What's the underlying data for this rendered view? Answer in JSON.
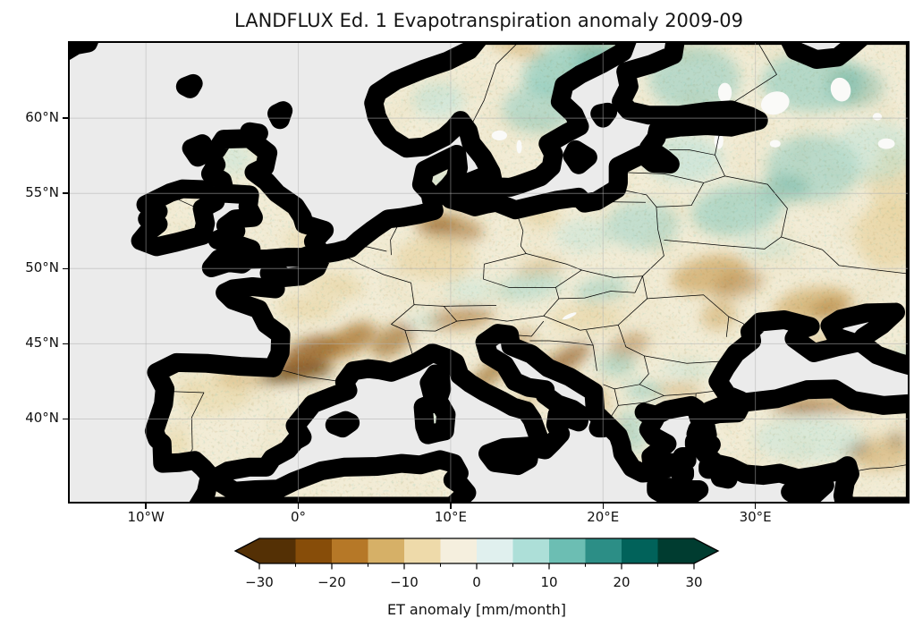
{
  "title": "LANDFLUX Ed. 1 Evapotranspiration anomaly 2009-09",
  "axes": {
    "x_tick_labels": [
      "10°W",
      "0°",
      "10°E",
      "20°E",
      "30°E"
    ],
    "x_tick_lons": [
      -10,
      0,
      10,
      20,
      30
    ],
    "y_tick_labels": [
      "60°N",
      "55°N",
      "50°N",
      "45°N",
      "40°N"
    ],
    "y_tick_lats": [
      60,
      55,
      50,
      45,
      40
    ],
    "lon_range": [
      -15,
      40
    ],
    "lat_range": [
      34.5,
      65
    ]
  },
  "colorbar": {
    "label": "ET anomaly [mm/month]",
    "ticks": [
      -30,
      -20,
      -10,
      0,
      10,
      20,
      30
    ],
    "tick_labels": [
      "−30",
      "−20",
      "−10",
      "0",
      "10",
      "20",
      "30"
    ],
    "range": [
      -30,
      30
    ],
    "bin_width": 5,
    "extend": "both",
    "colors": [
      "#543005",
      "#874d09",
      "#b67827",
      "#d6b067",
      "#eedaaa",
      "#f5efde",
      "#e0f0ee",
      "#addfd8",
      "#6cbeb3",
      "#2c8e86",
      "#01625a",
      "#003c30"
    ]
  },
  "colors": {
    "ocean": "#ebebeb",
    "land_base": "#f2ecd6",
    "coastline": "#000000",
    "grid": "#b3b3b3",
    "figure_bg": "#ffffff",
    "text": "#111111"
  },
  "chart_data": {
    "type": "heatmap",
    "title": "LANDFLUX Ed. 1 Evapotranspiration anomaly 2009-09",
    "variable": "ET anomaly",
    "units": "mm/month",
    "period": "2009-09",
    "dataset": "LANDFLUX Ed. 1",
    "projection": "equirectangular (lat/lon)",
    "extent": {
      "lon": [
        -15,
        40
      ],
      "lat": [
        34.5,
        65
      ]
    },
    "colormap": "BrBG, 12 discrete levels from -30 to 30, arrows both ends",
    "grid": "dashed graticule every 10 deg lon / 5 deg lat",
    "legend_position": "bottom horizontal colorbar",
    "ocean_is_no_data": true,
    "regions": [
      {
        "name": "pyrenees",
        "lon": -0.2,
        "lat": 43.05,
        "rx": 2.6,
        "ry": 0.5,
        "rot": -8,
        "color": "#543005",
        "opacity": 0.8,
        "value": -30
      },
      {
        "name": "aquitaine-sw-france",
        "lon": 0.7,
        "lat": 44.3,
        "rx": 2.1,
        "ry": 1.0,
        "rot": -25,
        "color": "#8c510a",
        "opacity": 0.75,
        "value": -25
      },
      {
        "name": "massif-central",
        "lon": 3.4,
        "lat": 45.2,
        "rx": 1.9,
        "ry": 0.9,
        "rot": -30,
        "color": "#a36a1f",
        "opacity": 0.7,
        "value": -20
      },
      {
        "name": "french-alps",
        "lon": 6.2,
        "lat": 45.2,
        "rx": 1.6,
        "ry": 0.9,
        "rot": -35,
        "color": "#8c510a",
        "opacity": 0.55,
        "value": -22
      },
      {
        "name": "loire",
        "lon": 0.6,
        "lat": 47.4,
        "rx": 2.0,
        "ry": 0.9,
        "rot": 0,
        "color": "#e8d39e",
        "opacity": 0.6,
        "value": -8
      },
      {
        "name": "paris-basin",
        "lon": 2.5,
        "lat": 48.9,
        "rx": 1.9,
        "ry": 0.8,
        "rot": 10,
        "color": "#e8d39e",
        "opacity": 0.6,
        "value": -8
      },
      {
        "name": "nw-iberia",
        "lon": -5.6,
        "lat": 41.6,
        "rx": 2.4,
        "ry": 1.3,
        "rot": 0,
        "color": "#e8d39e",
        "opacity": 0.5,
        "value": -7
      },
      {
        "name": "cantabria",
        "lon": -3.9,
        "lat": 42.7,
        "rx": 1.7,
        "ry": 0.5,
        "rot": 5,
        "color": "#cda257",
        "opacity": 0.5,
        "value": -13
      },
      {
        "name": "s-portugal",
        "lon": -7.9,
        "lat": 38.3,
        "rx": 0.9,
        "ry": 1.1,
        "rot": 0,
        "color": "#e8d39e",
        "opacity": 0.5,
        "value": -7
      },
      {
        "name": "eastern-alps",
        "lon": 10.6,
        "lat": 46.7,
        "rx": 2.3,
        "ry": 0.7,
        "rot": -6,
        "color": "#a36a1f",
        "opacity": 0.55,
        "value": -18
      },
      {
        "name": "nw-germany",
        "lon": 9.9,
        "lat": 52.7,
        "rx": 2.3,
        "ry": 0.9,
        "rot": 8,
        "color": "#a36a1f",
        "opacity": 0.55,
        "value": -17
      },
      {
        "name": "germany-core",
        "lon": 9.3,
        "lat": 52.9,
        "rx": 1.1,
        "ry": 0.5,
        "rot": 0,
        "color": "#8c510a",
        "opacity": 0.45,
        "value": -22
      },
      {
        "name": "central-germany",
        "lon": 9.0,
        "lat": 50.7,
        "rx": 2.6,
        "ry": 1.5,
        "rot": 0,
        "color": "#e8d39e",
        "opacity": 0.65,
        "value": -8
      },
      {
        "name": "n-czech",
        "lon": 15.8,
        "lat": 50.0,
        "rx": 1.6,
        "ry": 0.5,
        "rot": -10,
        "color": "#cda257",
        "opacity": 0.5,
        "value": -12
      },
      {
        "name": "apennines",
        "lon": 12.7,
        "lat": 43.1,
        "rx": 1.9,
        "ry": 0.6,
        "rot": -38,
        "color": "#8c510a",
        "opacity": 0.6,
        "value": -20
      },
      {
        "name": "s-apennines",
        "lon": 14.9,
        "lat": 41.1,
        "rx": 1.2,
        "ry": 0.5,
        "rot": -35,
        "color": "#cda257",
        "opacity": 0.45,
        "value": -10
      },
      {
        "name": "istria",
        "lon": 14.6,
        "lat": 45.3,
        "rx": 1.0,
        "ry": 0.5,
        "rot": -20,
        "color": "#a36a1f",
        "opacity": 0.5,
        "value": -15
      },
      {
        "name": "dinaric-alps",
        "lon": 17.4,
        "lat": 43.8,
        "rx": 2.1,
        "ry": 0.7,
        "rot": -33,
        "color": "#8c510a",
        "opacity": 0.65,
        "value": -22
      },
      {
        "name": "albania-coast",
        "lon": 19.6,
        "lat": 41.3,
        "rx": 0.7,
        "ry": 1.2,
        "rot": -10,
        "color": "#cda257",
        "opacity": 0.5,
        "value": -12
      },
      {
        "name": "pannonia",
        "lon": 18.9,
        "lat": 46.7,
        "rx": 2.4,
        "ry": 1.0,
        "rot": 0,
        "color": "#e8d39e",
        "opacity": 0.55,
        "value": -7
      },
      {
        "name": "banat-serbia",
        "lon": 21.7,
        "lat": 44.9,
        "rx": 1.4,
        "ry": 0.8,
        "rot": -20,
        "color": "#a36a1f",
        "opacity": 0.45,
        "value": -14
      },
      {
        "name": "rhodope",
        "lon": 24.8,
        "lat": 41.9,
        "rx": 1.6,
        "ry": 0.5,
        "rot": 0,
        "color": "#cda257",
        "opacity": 0.45,
        "value": -11
      },
      {
        "name": "w-ukraine",
        "lon": 27.0,
        "lat": 49.6,
        "rx": 2.6,
        "ry": 1.2,
        "rot": -12,
        "color": "#cda257",
        "opacity": 0.65,
        "value": -13
      },
      {
        "name": "podolia",
        "lon": 28.9,
        "lat": 48.9,
        "rx": 1.7,
        "ry": 0.8,
        "rot": -15,
        "color": "#a36a1f",
        "opacity": 0.45,
        "value": -17
      },
      {
        "name": "s-ukraine",
        "lon": 33.8,
        "lat": 47.6,
        "rx": 2.7,
        "ry": 1.1,
        "rot": -10,
        "color": "#cda257",
        "opacity": 0.6,
        "value": -13
      },
      {
        "name": "s-ukraine-core",
        "lon": 34.9,
        "lat": 47.3,
        "rx": 1.3,
        "ry": 0.6,
        "rot": -10,
        "color": "#a36a1f",
        "opacity": 0.45,
        "value": -17
      },
      {
        "name": "moldova",
        "lon": 27.6,
        "lat": 46.9,
        "rx": 1.2,
        "ry": 1.0,
        "rot": -20,
        "color": "#cda257",
        "opacity": 0.5,
        "value": -12
      },
      {
        "name": "crimea",
        "lon": 34.3,
        "lat": 45.2,
        "rx": 1.0,
        "ry": 0.45,
        "rot": 0,
        "color": "#cda257",
        "opacity": 0.5,
        "value": -10
      },
      {
        "name": "se-russia",
        "lon": 38.8,
        "lat": 52.2,
        "rx": 2.3,
        "ry": 2.3,
        "rot": 0,
        "color": "#e8d39e",
        "opacity": 0.7,
        "value": -6
      },
      {
        "name": "e-russia",
        "lon": 39.2,
        "lat": 55.8,
        "rx": 1.7,
        "ry": 2.5,
        "rot": 0,
        "color": "#e8d39e",
        "opacity": 0.6,
        "value": -5
      },
      {
        "name": "pontic-mountains",
        "lon": 34.5,
        "lat": 40.9,
        "rx": 3.6,
        "ry": 0.5,
        "rot": -3,
        "color": "#a36a1f",
        "opacity": 0.6,
        "value": -16
      },
      {
        "name": "pontic-core",
        "lon": 33.0,
        "lat": 40.9,
        "rx": 1.5,
        "ry": 0.35,
        "rot": 0,
        "color": "#8c510a",
        "opacity": 0.4,
        "value": -22
      },
      {
        "name": "se-turkey",
        "lon": 38.3,
        "lat": 37.6,
        "rx": 2.0,
        "ry": 1.1,
        "rot": 0,
        "color": "#cda257",
        "opacity": 0.5,
        "value": -11
      },
      {
        "name": "turkey-speck",
        "lon": 36.6,
        "lat": 38.0,
        "rx": 0.9,
        "ry": 0.4,
        "rot": -15,
        "color": "#543005",
        "opacity": 0.45,
        "value": -28
      },
      {
        "name": "turkey-speck2",
        "lon": 39.3,
        "lat": 38.6,
        "rx": 0.6,
        "ry": 0.5,
        "rot": 0,
        "color": "#543005",
        "opacity": 0.4,
        "value": -28
      },
      {
        "name": "n-norway-coast",
        "lon": 14.4,
        "lat": 64.7,
        "rx": 1.9,
        "ry": 0.5,
        "rot": 15,
        "color": "#cda257",
        "opacity": 0.55,
        "value": -12
      },
      {
        "name": "n-norway-coast2",
        "lon": 19.0,
        "lat": 64.9,
        "rx": 1.5,
        "ry": 0.4,
        "rot": 10,
        "color": "#cda257",
        "opacity": 0.5,
        "value": -12
      },
      {
        "name": "nw-poland",
        "lon": 15.9,
        "lat": 53.5,
        "rx": 1.5,
        "ry": 0.6,
        "rot": 0,
        "color": "#e8d39e",
        "opacity": 0.6,
        "value": -7
      },
      {
        "name": "se-england",
        "lon": 0.3,
        "lat": 51.9,
        "rx": 1.1,
        "ry": 0.7,
        "rot": 0,
        "color": "#e8d39e",
        "opacity": 0.55,
        "value": -6
      },
      {
        "name": "w-greece",
        "lon": 20.9,
        "lat": 38.9,
        "rx": 0.7,
        "ry": 1.0,
        "rot": 0,
        "color": "#cda257",
        "opacity": 0.4,
        "value": -10
      },
      {
        "name": "n-scandes",
        "lon": 17.8,
        "lat": 63.4,
        "rx": 3.2,
        "ry": 1.7,
        "rot": -18,
        "color": "#83c8bc",
        "opacity": 0.65,
        "value": 12
      },
      {
        "name": "n-sweden-core",
        "lon": 19.9,
        "lat": 63.9,
        "rx": 1.9,
        "ry": 0.9,
        "rot": -15,
        "color": "#45a396",
        "opacity": 0.35,
        "value": 17
      },
      {
        "name": "mid-sweden",
        "lon": 15.8,
        "lat": 60.6,
        "rx": 2.4,
        "ry": 1.6,
        "rot": 0,
        "color": "#83c8bc",
        "opacity": 0.5,
        "value": 9
      },
      {
        "name": "norway-inland",
        "lon": 9.2,
        "lat": 61.2,
        "rx": 1.7,
        "ry": 1.2,
        "rot": 0,
        "color": "#bce3da",
        "opacity": 0.55,
        "value": 6
      },
      {
        "name": "finland",
        "lon": 26.0,
        "lat": 62.6,
        "rx": 3.0,
        "ry": 2.2,
        "rot": 0,
        "color": "#83c8bc",
        "opacity": 0.5,
        "value": 10
      },
      {
        "name": "karelia",
        "lon": 33.8,
        "lat": 62.4,
        "rx": 3.4,
        "ry": 2.0,
        "rot": 0,
        "color": "#83c8bc",
        "opacity": 0.55,
        "value": 11
      },
      {
        "name": "karelia-core",
        "lon": 36.6,
        "lat": 62.1,
        "rx": 1.9,
        "ry": 1.4,
        "rot": 0,
        "color": "#45a396",
        "opacity": 0.3,
        "value": 15
      },
      {
        "name": "baltics",
        "lon": 25.3,
        "lat": 57.3,
        "rx": 2.6,
        "ry": 1.6,
        "rot": 0,
        "color": "#bce3da",
        "opacity": 0.6,
        "value": 7
      },
      {
        "name": "belarus",
        "lon": 28.8,
        "lat": 53.9,
        "rx": 3.0,
        "ry": 1.7,
        "rot": -8,
        "color": "#83c8bc",
        "opacity": 0.55,
        "value": 10
      },
      {
        "name": "w-russia",
        "lon": 33.8,
        "lat": 56.7,
        "rx": 3.1,
        "ry": 2.2,
        "rot": 0,
        "color": "#83c8bc",
        "opacity": 0.5,
        "value": 10
      },
      {
        "name": "smolensk-core",
        "lon": 31.9,
        "lat": 55.3,
        "rx": 1.6,
        "ry": 1.0,
        "rot": 0,
        "color": "#45a396",
        "opacity": 0.3,
        "value": 15
      },
      {
        "name": "e-poland",
        "lon": 22.6,
        "lat": 52.9,
        "rx": 2.4,
        "ry": 1.6,
        "rot": 0,
        "color": "#9ed3c8",
        "opacity": 0.55,
        "value": 7
      },
      {
        "name": "c-poland",
        "lon": 18.8,
        "lat": 52.2,
        "rx": 1.9,
        "ry": 1.1,
        "rot": 0,
        "color": "#bce3da",
        "opacity": 0.45,
        "value": 5
      },
      {
        "name": "s-bohemia",
        "lon": 15.2,
        "lat": 48.8,
        "rx": 2.2,
        "ry": 0.9,
        "rot": -10,
        "color": "#9ed3c8",
        "opacity": 0.5,
        "value": 8
      },
      {
        "name": "slovakia",
        "lon": 19.9,
        "lat": 48.6,
        "rx": 1.8,
        "ry": 0.8,
        "rot": -10,
        "color": "#83c8bc",
        "opacity": 0.45,
        "value": 9
      },
      {
        "name": "bavaria",
        "lon": 11.4,
        "lat": 48.6,
        "rx": 1.7,
        "ry": 0.8,
        "rot": 0,
        "color": "#bce3da",
        "opacity": 0.4,
        "value": 4
      },
      {
        "name": "switzerland",
        "lon": 8.3,
        "lat": 46.6,
        "rx": 1.0,
        "ry": 0.4,
        "rot": 0,
        "color": "#bce3da",
        "opacity": 0.5,
        "value": 5
      },
      {
        "name": "serbia",
        "lon": 20.9,
        "lat": 43.6,
        "rx": 1.3,
        "ry": 0.8,
        "rot": 0,
        "color": "#83c8bc",
        "opacity": 0.45,
        "value": 8
      },
      {
        "name": "macedonia",
        "lon": 22.7,
        "lat": 41.9,
        "rx": 1.3,
        "ry": 0.6,
        "rot": 0,
        "color": "#83c8bc",
        "opacity": 0.5,
        "value": 9
      },
      {
        "name": "c-greece",
        "lon": 21.9,
        "lat": 39.2,
        "rx": 0.9,
        "ry": 1.5,
        "rot": -15,
        "color": "#83c8bc",
        "opacity": 0.45,
        "value": 8
      },
      {
        "name": "scotland",
        "lon": -4.2,
        "lat": 57.3,
        "rx": 1.2,
        "ry": 1.1,
        "rot": 0,
        "color": "#bce3da",
        "opacity": 0.45,
        "value": 4
      },
      {
        "name": "sw-england",
        "lon": -3.9,
        "lat": 50.8,
        "rx": 0.8,
        "ry": 0.35,
        "rot": 0,
        "color": "#bce3da",
        "opacity": 0.5,
        "value": 5
      },
      {
        "name": "n-ukraine",
        "lon": 30.8,
        "lat": 51.4,
        "rx": 1.9,
        "ry": 0.7,
        "rot": 0,
        "color": "#bce3da",
        "opacity": 0.4,
        "value": 5
      },
      {
        "name": "c-russia",
        "lon": 37.8,
        "lat": 57.8,
        "rx": 2.7,
        "ry": 2.0,
        "rot": 0,
        "color": "#bce3da",
        "opacity": 0.5,
        "value": 6
      },
      {
        "name": "caucasus-coast",
        "lon": 39.7,
        "lat": 43.9,
        "rx": 1.1,
        "ry": 0.5,
        "rot": -20,
        "color": "#83c8bc",
        "opacity": 0.5,
        "value": 9
      },
      {
        "name": "denmark",
        "lon": 9.3,
        "lat": 55.9,
        "rx": 1.2,
        "ry": 0.8,
        "rot": 0,
        "color": "#bce3da",
        "opacity": 0.35,
        "value": 4
      },
      {
        "name": "sardinia-corsica",
        "lon": 8.9,
        "lat": 40.1,
        "rx": 0.8,
        "ry": 1.2,
        "rot": 0,
        "color": "#bce3da",
        "opacity": 0.4,
        "value": 5
      },
      {
        "name": "sicily",
        "lon": 14.2,
        "lat": 37.3,
        "rx": 1.1,
        "ry": 0.4,
        "rot": 0,
        "color": "#bce3da",
        "opacity": 0.4,
        "value": 4
      },
      {
        "name": "anatolia-interior",
        "lon": 33.5,
        "lat": 38.7,
        "rx": 3.6,
        "ry": 1.5,
        "rot": 0,
        "color": "#bce3da",
        "opacity": 0.45,
        "value": 4
      },
      {
        "name": "n-bulgaria",
        "lon": 25.6,
        "lat": 43.3,
        "rx": 1.8,
        "ry": 0.6,
        "rot": 0,
        "color": "#bce3da",
        "opacity": 0.45,
        "value": 5
      }
    ]
  }
}
